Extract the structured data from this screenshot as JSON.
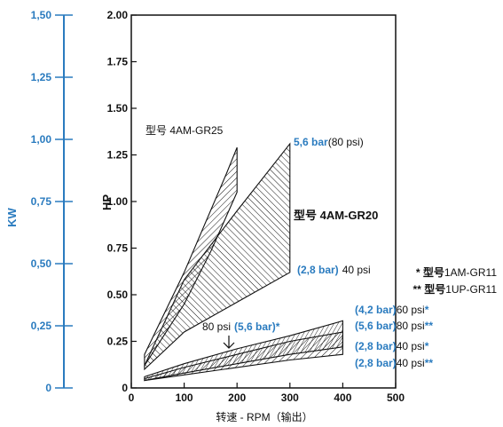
{
  "chart_data": {
    "type": "area",
    "x_axis": {
      "label": "转速 - RPM（输出）",
      "ticks": [
        "0",
        "100",
        "200",
        "300",
        "400",
        "500"
      ],
      "range": [
        0,
        500
      ]
    },
    "y_axis": {
      "label": "HP",
      "ticks": [
        "0",
        "0.25",
        "0.50",
        "0.75",
        "1.00",
        "1.25",
        "1.50",
        "1.75",
        "2.00"
      ],
      "range": [
        0,
        2
      ]
    },
    "kw_axis": {
      "label": "KW",
      "ticks": [
        "0",
        "0,25",
        "0,50",
        "0,75",
        "1,00",
        "1,25",
        "1,50"
      ],
      "range": [
        0,
        1.5
      ]
    },
    "series": [
      {
        "model": "4AM-GR25",
        "upper": [
          [
            25,
            0.18
          ],
          [
            100,
            0.62
          ],
          [
            180,
            1.15
          ],
          [
            200,
            1.29
          ]
        ],
        "lower": [
          [
            25,
            0.12
          ],
          [
            100,
            0.45
          ],
          [
            150,
            0.73
          ],
          [
            200,
            1.05
          ]
        ]
      },
      {
        "model": "4AM-GR20",
        "upper": [
          [
            25,
            0.12
          ],
          [
            100,
            0.58
          ],
          [
            200,
            0.95
          ],
          [
            300,
            1.31
          ]
        ],
        "lower": [
          [
            25,
            0.1
          ],
          [
            100,
            0.3
          ],
          [
            200,
            0.46
          ],
          [
            300,
            0.62
          ]
        ]
      },
      {
        "model": "1AM-GR11",
        "upper": [
          [
            25,
            0.06
          ],
          [
            100,
            0.13
          ],
          [
            200,
            0.21
          ],
          [
            300,
            0.28
          ],
          [
            400,
            0.36
          ]
        ],
        "lower": [
          [
            25,
            0.04
          ],
          [
            100,
            0.08
          ],
          [
            200,
            0.13
          ],
          [
            300,
            0.18
          ],
          [
            400,
            0.22
          ]
        ]
      },
      {
        "model": "1UP-GR11",
        "upper": [
          [
            25,
            0.05
          ],
          [
            100,
            0.11
          ],
          [
            200,
            0.18
          ],
          [
            300,
            0.25
          ],
          [
            400,
            0.3
          ]
        ],
        "lower": [
          [
            25,
            0.04
          ],
          [
            100,
            0.07
          ],
          [
            200,
            0.11
          ],
          [
            300,
            0.15
          ],
          [
            400,
            0.18
          ]
        ]
      }
    ],
    "annotations": {
      "gr25_label": "型号 4AM-GR25",
      "gr20_high_bar": "5,6 bar",
      "gr20_high_psi": "(80 psi)",
      "gr20_model": "型号  4AM-GR20",
      "gr20_low_bar": "(2,8 bar)",
      "gr20_low_psi": "40 psi",
      "gr11_arrow_psi": "80 psi",
      "gr11_arrow_bar": "(5,6 bar)",
      "gr11_arrow_star": "*",
      "right_labels": [
        {
          "bar": "(4,2 bar)",
          "psi": "60 psi",
          "mark": "*"
        },
        {
          "bar": "(5,6 bar)",
          "psi": "80 psi",
          "mark": "**"
        },
        {
          "bar": "(2,8 bar)",
          "psi": "40 psi",
          "mark": "*"
        },
        {
          "bar": "(2,8 bar)",
          "psi": "40 psi",
          "mark": "**"
        }
      ],
      "legend": [
        {
          "mark": "*",
          "prefix": "型号",
          "model": "1AM-GR11"
        },
        {
          "mark": "**",
          "prefix": "型号",
          "model": "1UP-GR11"
        }
      ]
    },
    "colors": {
      "kw_axis": "#2a7bbf",
      "hatch": "#111111"
    }
  }
}
